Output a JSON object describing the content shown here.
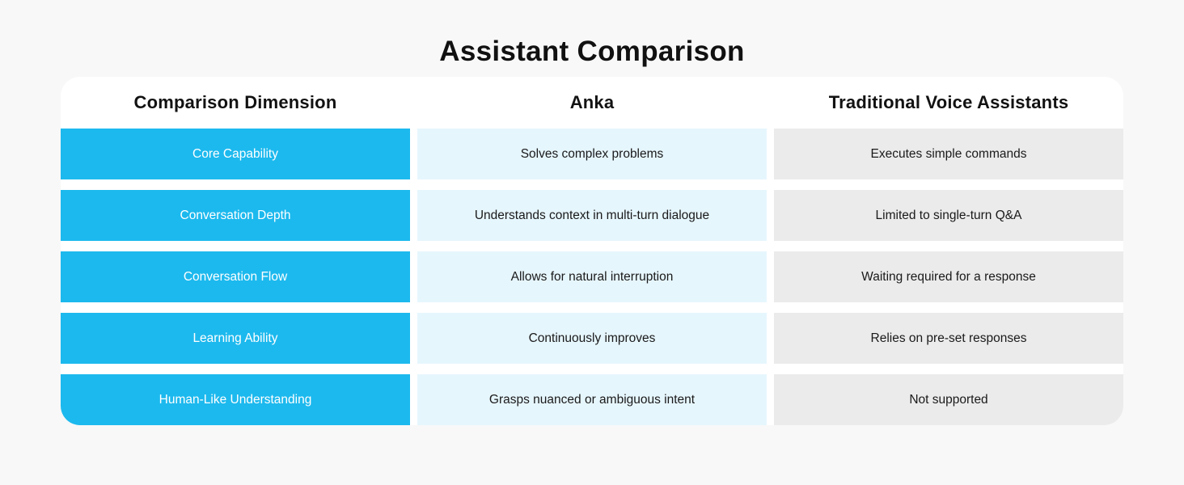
{
  "page": {
    "background": "#f8f8f8"
  },
  "title": "Assistant Comparison",
  "table": {
    "columns": [
      {
        "label": "Comparison Dimension"
      },
      {
        "label": "Anka"
      },
      {
        "label": "Traditional Voice Assistants"
      }
    ],
    "rows": [
      {
        "dimension": "Core Capability",
        "anka": "Solves complex problems",
        "traditional": "Executes simple commands"
      },
      {
        "dimension": "Conversation Depth",
        "anka": "Understands context in multi-turn dialogue",
        "traditional": "Limited to single-turn Q&A"
      },
      {
        "dimension": "Conversation Flow",
        "anka": "Allows for natural interruption",
        "traditional": "Waiting required for a response"
      },
      {
        "dimension": "Learning Ability",
        "anka": "Continuously improves",
        "traditional": "Relies on pre-set responses"
      },
      {
        "dimension": "Human-Like Understanding",
        "anka": "Grasps nuanced or ambiguous intent",
        "traditional": "Not supported"
      }
    ],
    "colors": {
      "dimension_cell_bg": "#1cb9ee",
      "dimension_cell_text": "#ffffff",
      "anka_cell_bg": "#e6f6fd",
      "traditional_cell_bg": "#ebebeb",
      "cell_text": "#1a1a1a",
      "card_bg": "#ffffff"
    }
  }
}
